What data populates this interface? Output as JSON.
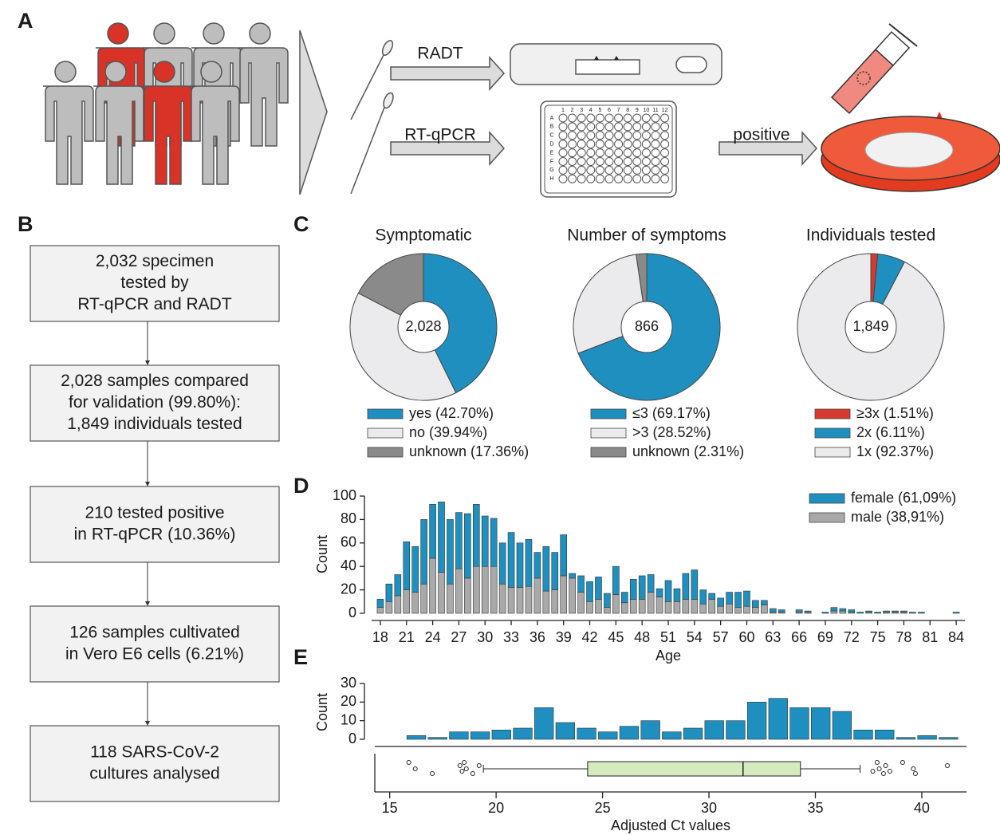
{
  "panel_labels": [
    "A",
    "B",
    "C",
    "D",
    "E"
  ],
  "diagram": {
    "arrows": [
      "RADT",
      "RT-qPCR",
      "positive"
    ],
    "plate_columns": [
      "1",
      "2",
      "3",
      "4",
      "5",
      "6",
      "7",
      "8",
      "9",
      "10",
      "11",
      "12"
    ],
    "plate_rows": [
      "A",
      "B",
      "C",
      "D",
      "E",
      "F",
      "G",
      "H"
    ]
  },
  "flowchart": {
    "boxes": [
      [
        "2,032 specimen",
        "tested by",
        "RT-qPCR and RADT"
      ],
      [
        "2,028 samples compared",
        "for validation (99.80%):",
        "1,849 individuals tested"
      ],
      [
        "210 tested positive",
        "in RT-qPCR (10.36%)"
      ],
      [
        "126 samples cultivated",
        "in Vero E6 cells (6.21%)"
      ],
      [
        "118 SARS-CoV-2",
        "cultures analysed"
      ]
    ]
  },
  "chart_data": [
    {
      "type": "pie",
      "title": "Symptomatic",
      "center_label": "2,028",
      "categories": [
        "yes (42.70%)",
        "no (39.94%)",
        "unknown (17.36%)"
      ],
      "values": [
        42.7,
        39.94,
        17.36
      ],
      "colors": [
        "#1f8fbf",
        "#ebebed",
        "#8a8a8a"
      ]
    },
    {
      "type": "pie",
      "title": "Number of symptoms",
      "center_label": "866",
      "categories": [
        "≤3 (69.17%)",
        ">3 (28.52%)",
        "unknown (2.31%)"
      ],
      "values": [
        69.17,
        28.52,
        2.31
      ],
      "colors": [
        "#1f8fbf",
        "#ebebed",
        "#8a8a8a"
      ]
    },
    {
      "type": "pie",
      "title": "Individuals tested",
      "center_label": "1,849",
      "categories": [
        "≥3x (1.51%)",
        "2x (6.11%)",
        "1x (92.37%)"
      ],
      "values": [
        1.51,
        6.11,
        92.37
      ],
      "colors": [
        "#d63a2f",
        "#1f8fbf",
        "#ebebed"
      ]
    },
    {
      "type": "bar",
      "stacked": true,
      "x": [
        18,
        19,
        20,
        21,
        22,
        23,
        24,
        25,
        26,
        27,
        28,
        29,
        30,
        31,
        32,
        33,
        34,
        35,
        36,
        37,
        38,
        39,
        40,
        41,
        42,
        43,
        44,
        45,
        46,
        47,
        48,
        49,
        50,
        51,
        52,
        53,
        54,
        55,
        56,
        57,
        58,
        59,
        60,
        61,
        62,
        63,
        64,
        65,
        66,
        67,
        68,
        69,
        70,
        71,
        72,
        73,
        74,
        75,
        76,
        77,
        78,
        79,
        80,
        81,
        82,
        83,
        84
      ],
      "series": [
        {
          "name": "female (61,09%)",
          "color": "#1f8fbf",
          "values": [
            7,
            15,
            18,
            41,
            39,
            55,
            46,
            60,
            55,
            48,
            55,
            53,
            43,
            41,
            35,
            47,
            38,
            40,
            22,
            38,
            32,
            35,
            4,
            14,
            17,
            19,
            12,
            24,
            9,
            17,
            20,
            15,
            7,
            18,
            11,
            22,
            25,
            12,
            5,
            7,
            10,
            13,
            13,
            6,
            4,
            3,
            2,
            0,
            2,
            1,
            0,
            1,
            3,
            2,
            2,
            1,
            1,
            1,
            1,
            1,
            1,
            1,
            1,
            0,
            0,
            0,
            1
          ]
        },
        {
          "name": "male (38,91%)",
          "color": "#a9a9a9",
          "values": [
            5,
            10,
            15,
            20,
            18,
            25,
            47,
            35,
            25,
            38,
            30,
            40,
            40,
            40,
            25,
            22,
            22,
            23,
            30,
            19,
            20,
            32,
            30,
            18,
            10,
            12,
            5,
            16,
            9,
            12,
            12,
            18,
            14,
            10,
            10,
            12,
            12,
            8,
            12,
            6,
            8,
            5,
            6,
            5,
            7,
            1,
            1,
            0,
            1,
            1,
            0,
            0,
            2,
            2,
            1,
            0,
            1,
            0,
            1,
            1,
            1,
            0,
            0,
            0,
            0,
            0,
            0
          ]
        }
      ],
      "xlim": [
        17,
        85
      ],
      "ylim": [
        0,
        100
      ],
      "xticks": [
        18,
        21,
        24,
        27,
        30,
        33,
        36,
        39,
        42,
        45,
        48,
        51,
        54,
        57,
        60,
        63,
        66,
        69,
        72,
        75,
        78,
        81,
        84
      ],
      "yticks": [
        0,
        20,
        40,
        60,
        80,
        100
      ],
      "xlabel": "Age",
      "ylabel": "Count",
      "legend": "upper right"
    },
    {
      "type": "histogram",
      "bins": [
        15.75,
        16.75,
        17.75,
        18.75,
        19.75,
        20.75,
        21.75,
        22.75,
        23.75,
        24.75,
        25.75,
        26.75,
        27.75,
        28.75,
        29.75,
        30.75,
        31.75,
        32.75,
        33.75,
        34.75,
        35.75,
        36.75,
        37.75,
        38.75,
        39.75,
        40.75,
        41.75
      ],
      "values": [
        2,
        1,
        4,
        4,
        5,
        6,
        17,
        9,
        6,
        4,
        7,
        10,
        4,
        6,
        10,
        10,
        20,
        22,
        17,
        17,
        15,
        5,
        5,
        1,
        2,
        1
      ],
      "color": "#1f8fbf",
      "xlim": [
        14.3,
        42.1
      ],
      "ylim": [
        0,
        30
      ],
      "xticks": [
        15,
        20,
        25,
        30,
        35,
        40
      ],
      "yticks": [
        0,
        10,
        20,
        30
      ],
      "xlabel": "Adjusted Ct values",
      "ylabel": "Count",
      "boxplot": {
        "whisker_low": 19.4,
        "q1": 24.3,
        "median": 31.6,
        "q3": 34.3,
        "whisker_high": 37.1,
        "outliers": [
          15.9,
          16.2,
          17.0,
          18.3,
          18.4,
          18.5,
          18.6,
          18.9,
          19.2,
          37.7,
          37.9,
          38.0,
          38.2,
          38.3,
          38.5,
          39.1,
          39.6,
          39.7,
          41.2
        ],
        "color": "#d4ebc0"
      }
    }
  ]
}
